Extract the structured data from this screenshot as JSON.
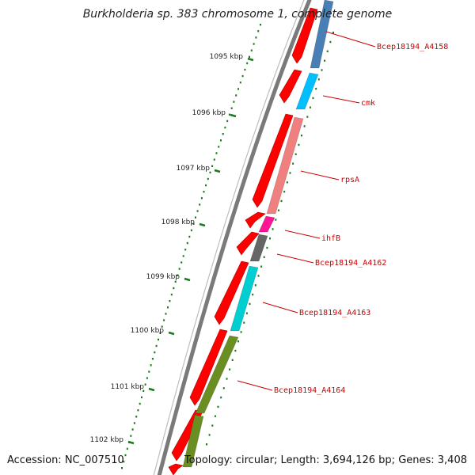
{
  "title": "Burkholderia sp. 383 chromosome 1, complete genome",
  "footer": {
    "accession": "Accession: NC_007510",
    "topology": "Topology: circular;",
    "length": "Length: 3,694,126 bp;",
    "genes": "Genes: 3,408"
  },
  "colors": {
    "backbone": "#7a7a7a",
    "forward_cds": "#ff0000",
    "tick": "#1a7a1a",
    "label": "#cc0000"
  },
  "tick_labels": [
    {
      "label": "1095 kbp"
    },
    {
      "label": "1096 kbp"
    },
    {
      "label": "1097 kbp"
    },
    {
      "label": "1098 kbp"
    },
    {
      "label": "1099 kbp"
    },
    {
      "label": "1100 kbp"
    },
    {
      "label": "1101 kbp"
    },
    {
      "label": "1102 kbp"
    }
  ],
  "genes": [
    {
      "name": "Bcep18194_A4158",
      "color": "#4a7fb5"
    },
    {
      "name": "cmk",
      "color": "#00bfff"
    },
    {
      "name": "rpsA",
      "color": "#f08080"
    },
    {
      "name": "ihfB",
      "color": "#ff1493"
    },
    {
      "name": "Bcep18194_A4162",
      "color": "#666666"
    },
    {
      "name": "Bcep18194_A4163",
      "color": "#00ced1"
    },
    {
      "name": "Bcep18194_A4164",
      "color": "#6b8e23"
    }
  ]
}
